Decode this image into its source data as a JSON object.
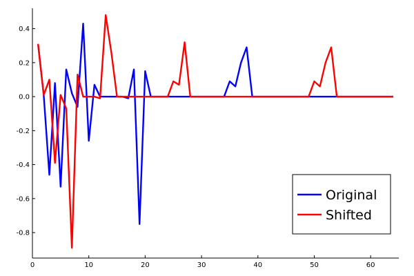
{
  "chart_data": {
    "type": "line",
    "title": "",
    "xlabel": "",
    "ylabel": "",
    "xlim": [
      0,
      65
    ],
    "ylim": [
      -0.95,
      0.52
    ],
    "xticks": [
      0,
      10,
      20,
      30,
      40,
      50,
      60
    ],
    "yticks": [
      -0.8,
      -0.6,
      -0.4,
      -0.2,
      0.0,
      0.2,
      0.4
    ],
    "xtick_labels": [
      "0",
      "10",
      "20",
      "30",
      "40",
      "50",
      "60"
    ],
    "ytick_labels": [
      "-0.8",
      "-0.6",
      "-0.4",
      "-0.2",
      "0.0",
      "0.2",
      "0.4"
    ],
    "grid": false,
    "legend_position": "bottom-right",
    "series": [
      {
        "name": "Original",
        "color": "#0000ff",
        "x": [
          1,
          2,
          3,
          4,
          5,
          6,
          7,
          8,
          9,
          10,
          11,
          12,
          13,
          14,
          15,
          16,
          17,
          18,
          19,
          20,
          21,
          22,
          23,
          24,
          25,
          26,
          27,
          28,
          29,
          30,
          31,
          32,
          33,
          34,
          35,
          36,
          37,
          38,
          39,
          40,
          41,
          42,
          43,
          44,
          45,
          46,
          47,
          48,
          49,
          50,
          51,
          52,
          53,
          54,
          55,
          56,
          57,
          58,
          59,
          60,
          61,
          62,
          63,
          64
        ],
        "y": [
          0.31,
          0.01,
          -0.46,
          0.08,
          -0.53,
          0.16,
          0.02,
          -0.06,
          0.43,
          -0.26,
          0.07,
          0.0,
          0.0,
          0.0,
          0.0,
          0.0,
          -0.01,
          0.16,
          -0.75,
          0.15,
          0.0,
          0.0,
          0.0,
          0.0,
          0.0,
          0.0,
          0.0,
          0.0,
          0.0,
          0.0,
          0.0,
          0.0,
          0.0,
          0.0,
          0.09,
          0.06,
          0.2,
          0.29,
          0.0,
          0.0,
          0.0,
          0.0,
          0.0,
          0.0,
          0.0,
          0.0,
          0.0,
          0.0,
          0.0,
          0.0,
          0.0,
          0.0,
          0.0,
          0.0,
          0.0,
          0.0,
          0.0,
          0.0,
          0.0,
          0.0,
          0.0,
          0.0,
          0.0,
          0.0
        ]
      },
      {
        "name": "Shifted",
        "color": "#ff0000",
        "x": [
          1,
          2,
          3,
          4,
          5,
          6,
          7,
          8,
          9,
          10,
          11,
          12,
          13,
          14,
          15,
          16,
          17,
          18,
          19,
          20,
          21,
          22,
          23,
          24,
          25,
          26,
          27,
          28,
          29,
          30,
          31,
          32,
          33,
          34,
          35,
          36,
          37,
          38,
          39,
          40,
          41,
          42,
          43,
          44,
          45,
          46,
          47,
          48,
          49,
          50,
          51,
          52,
          53,
          54,
          55,
          56,
          57,
          58,
          59,
          60,
          61,
          62,
          63,
          64
        ],
        "y": [
          0.31,
          0.01,
          0.1,
          -0.39,
          0.01,
          -0.07,
          -0.89,
          0.13,
          0.0,
          0.0,
          0.0,
          -0.01,
          0.48,
          0.26,
          0.0,
          0.0,
          0.0,
          0.0,
          0.0,
          0.0,
          0.0,
          0.0,
          0.0,
          0.0,
          0.09,
          0.07,
          0.32,
          0.0,
          0.0,
          0.0,
          0.0,
          0.0,
          0.0,
          0.0,
          0.0,
          0.0,
          0.0,
          0.0,
          0.0,
          0.0,
          0.0,
          0.0,
          0.0,
          0.0,
          0.0,
          0.0,
          0.0,
          0.0,
          0.0,
          0.09,
          0.06,
          0.2,
          0.29,
          0.0,
          0.0,
          0.0,
          0.0,
          0.0,
          0.0,
          0.0,
          0.0,
          0.0,
          0.0,
          0.0
        ]
      }
    ]
  }
}
